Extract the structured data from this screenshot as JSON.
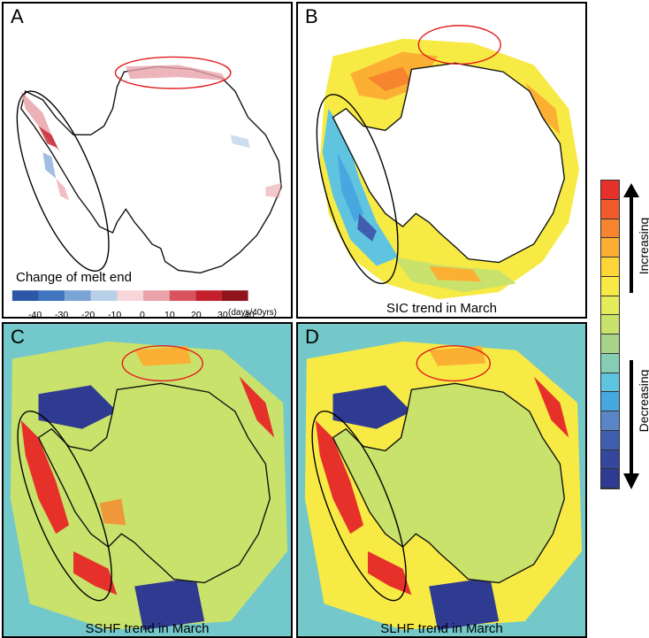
{
  "panels": {
    "a": {
      "letter": "A",
      "legend_title": "Change of melt end",
      "ticks": [
        "-40",
        "-30",
        "-20",
        "-10",
        "0",
        "10",
        "20",
        "30",
        "40"
      ],
      "unit": "(days/40yrs)"
    },
    "b": {
      "letter": "B",
      "caption": "SIC trend in March"
    },
    "c": {
      "letter": "C",
      "caption": "SSHF trend in March"
    },
    "d": {
      "letter": "D",
      "caption": "SLHF trend in March"
    }
  },
  "side_legend": {
    "top_label": "Increasing",
    "bottom_label": "Decreasing"
  },
  "colors": {
    "melt_scale": [
      "#2b57a6",
      "#3f74bf",
      "#7aa3d6",
      "#b8cfe8",
      "#f6d6d9",
      "#e9a3aa",
      "#d9535f",
      "#c4202c",
      "#8f141c"
    ],
    "trend_scale": [
      "#e6312a",
      "#f2592c",
      "#f7852f",
      "#fbb033",
      "#fdd537",
      "#f7ea45",
      "#e3ed5a",
      "#c9e26c",
      "#a8d489",
      "#86cdb6",
      "#5fc4e0",
      "#47a8df",
      "#5a86c7",
      "#3f5fae",
      "#34479c",
      "#2f3b90"
    ]
  }
}
